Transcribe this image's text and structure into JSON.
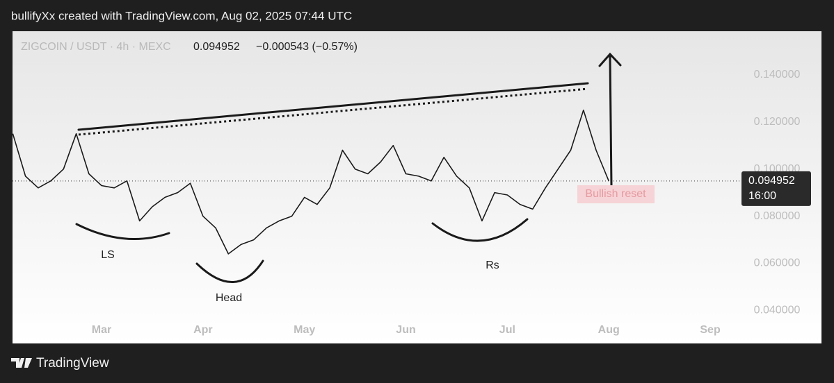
{
  "header": "bullifyXx created with TradingView.com, Aug 02, 2025 07:44 UTC",
  "footer": "TradingView",
  "chart_data": {
    "type": "line",
    "title": "ZIGCOIN / USDT · 4h · MEXC",
    "change": "−0.000543 (−0.57%)",
    "last_price": 0.094952,
    "last_time": "16:00",
    "annotations": [
      "LS",
      "Head",
      "Rs",
      "Bullish reset"
    ],
    "categories": [
      null,
      null,
      null,
      null,
      null,
      null,
      null,
      "Mar",
      null,
      null,
      null,
      null,
      null,
      null,
      null,
      "Apr",
      null,
      null,
      null,
      null,
      null,
      null,
      null,
      "May",
      null,
      null,
      null,
      null,
      null,
      null,
      null,
      "Jun",
      null,
      null,
      null,
      null,
      null,
      null,
      null,
      "Jul",
      null,
      null,
      null,
      null,
      null,
      null,
      null,
      "Aug",
      null,
      null,
      null,
      null,
      null,
      null,
      null,
      "Sep"
    ],
    "series": [
      {
        "name": "ZIGCOIN / USDT",
        "color": "#1a1a1a",
        "values": [
          0.115,
          0.097,
          0.092,
          0.095,
          0.1,
          0.115,
          0.098,
          0.093,
          0.092,
          0.095,
          0.078,
          0.084,
          0.088,
          0.09,
          0.094,
          0.08,
          0.075,
          0.064,
          0.068,
          0.07,
          0.075,
          0.078,
          0.08,
          0.088,
          0.085,
          0.092,
          0.108,
          0.1,
          0.098,
          0.103,
          0.11,
          0.098,
          0.097,
          0.095,
          0.105,
          0.097,
          0.092,
          0.078,
          0.09,
          0.089,
          0.085,
          0.083,
          0.092,
          0.1,
          0.108,
          0.125,
          0.108,
          0.094952,
          null,
          null,
          null,
          null,
          null,
          null,
          null,
          null
        ]
      }
    ],
    "ylim": [
      0.026,
      0.1585
    ],
    "yticks": [
      {
        "value": 0.04,
        "label": "0.040000"
      },
      {
        "value": 0.06,
        "label": "0.060000"
      },
      {
        "value": 0.08,
        "label": "0.080000"
      },
      {
        "value": 0.1,
        "label": "0.100000"
      },
      {
        "value": 0.12,
        "label": "0.120000"
      },
      {
        "value": 0.14,
        "label": "0.140000"
      }
    ]
  }
}
